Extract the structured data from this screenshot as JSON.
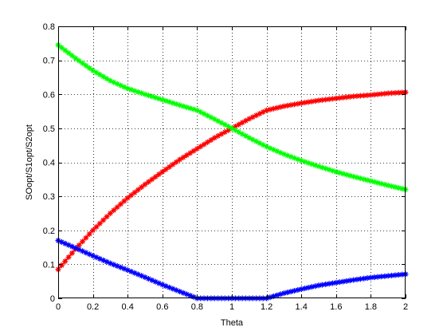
{
  "chart_data": {
    "type": "line",
    "xlabel": "Theta",
    "ylabel": "SOopt/S1opt/S2opt",
    "xlim": [
      0,
      2
    ],
    "ylim": [
      0,
      0.8
    ],
    "xticks": [
      "0",
      "0.2",
      "0.4",
      "0.6",
      "0.8",
      "1",
      "1.2",
      "1.4",
      "1.6",
      "1.8",
      "2"
    ],
    "yticks": [
      "0",
      "0.1",
      "0.2",
      "0.3",
      "0.4",
      "0.5",
      "0.6",
      "0.7",
      "0.8"
    ],
    "grid": "on (dotted)",
    "marker": "asterisk",
    "x": [
      0,
      0.1,
      0.2,
      0.3,
      0.4,
      0.5,
      0.6,
      0.7,
      0.8,
      0.9,
      1.0,
      1.1,
      1.2,
      1.3,
      1.4,
      1.5,
      1.6,
      1.7,
      1.8,
      1.9,
      2.0
    ],
    "series": [
      {
        "color": "#ff0000",
        "values": [
          0.085,
          0.145,
          0.2,
          0.25,
          0.295,
          0.335,
          0.372,
          0.408,
          0.44,
          0.472,
          0.5,
          0.528,
          0.553,
          0.565,
          0.574,
          0.582,
          0.588,
          0.594,
          0.598,
          0.603,
          0.606
        ]
      },
      {
        "color": "#00ff00",
        "values": [
          0.745,
          0.706,
          0.67,
          0.64,
          0.617,
          0.6,
          0.584,
          0.568,
          0.553,
          0.527,
          0.5,
          0.472,
          0.446,
          0.424,
          0.405,
          0.388,
          0.372,
          0.358,
          0.345,
          0.332,
          0.32
        ]
      },
      {
        "color": "#0000ff",
        "values": [
          0.17,
          0.148,
          0.125,
          0.103,
          0.083,
          0.062,
          0.04,
          0.02,
          0.0,
          0.0,
          0.0,
          0.0,
          0.0,
          0.015,
          0.027,
          0.038,
          0.046,
          0.054,
          0.061,
          0.066,
          0.071
        ]
      }
    ]
  }
}
